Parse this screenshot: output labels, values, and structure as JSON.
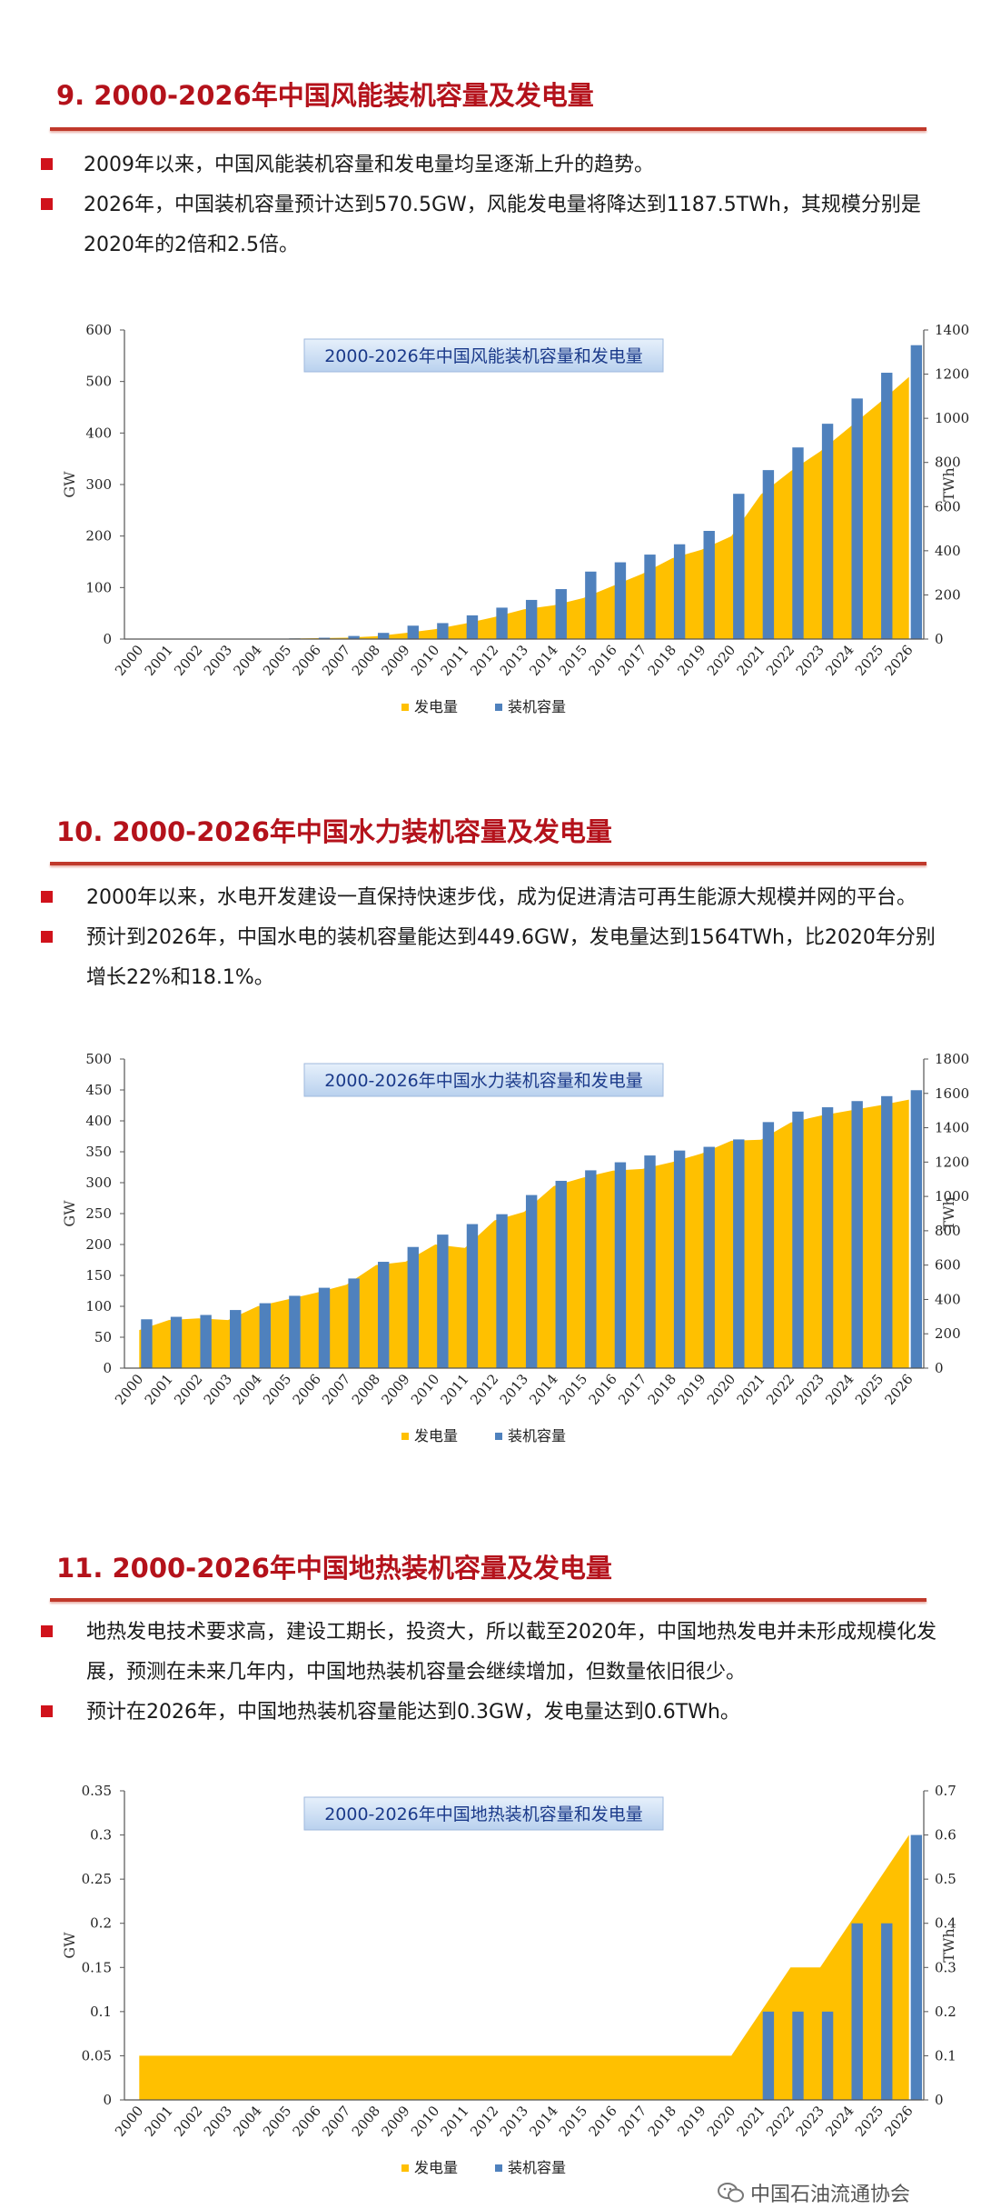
{
  "sections": [
    {
      "title": "9. 2000-2026年中国风能装机容量及发电量",
      "bullets": [
        "2009年以来，中国风能装机容量和发电量均呈逐渐上升的趋势。",
        "2026年，中国装机容量预计达到570.5GW，风能发电量将降达到1187.5TWh，其规模分别是2020年的2倍和2.5倍。"
      ]
    },
    {
      "title": "10. 2000-2026年中国水力装机容量及发电量",
      "bullets": [
        "2000年以来，水电开发建设一直保持快速步伐，成为促进清洁可再生能源大规模并网的平台。",
        "预计到2026年，中国水电的装机容量能达到449.6GW，发电量达到1564TWh，比2020年分别增长22%和18.1%。"
      ]
    },
    {
      "title": "11. 2000-2026年中国地热装机容量及发电量",
      "bullets": [
        "地热发电技术要求高，建设工期长，投资大，所以截至2020年，中国地热发电并未形成规模化发展，预测在未来几年内，中国地热装机容量会继续增加，但数量依旧很少。",
        "预计在2026年，中国地热装机容量能达到0.3GW，发电量达到0.6TWh。"
      ]
    }
  ],
  "colors": {
    "accent": "#b4121b",
    "bar": "#4f81bd",
    "area": "#ffc000",
    "title_bg": "#cfe0f3"
  },
  "chart_data": [
    {
      "type": "bar",
      "title": "2000-2026年中国风能装机容量和发电量",
      "categories": [
        "2000",
        "2001",
        "2002",
        "2003",
        "2004",
        "2005",
        "2006",
        "2007",
        "2008",
        "2009",
        "2010",
        "2011",
        "2012",
        "2013",
        "2014",
        "2015",
        "2016",
        "2017",
        "2018",
        "2019",
        "2020",
        "2021",
        "2022",
        "2023",
        "2024",
        "2025",
        "2026"
      ],
      "series": [
        {
          "name": "发电量",
          "kind": "area",
          "axis": "right",
          "values": [
            0,
            0,
            0,
            0,
            1,
            2,
            4,
            6,
            13,
            28,
            45,
            70,
            100,
            135,
            153,
            186,
            241,
            296,
            366,
            405,
            466,
            655,
            760,
            850,
            960,
            1070,
            1187.5
          ]
        },
        {
          "name": "装机容量",
          "kind": "bar",
          "axis": "left",
          "values": [
            0.3,
            0.4,
            0.5,
            0.6,
            0.8,
            1.3,
            2.6,
            6,
            12,
            26,
            31,
            46,
            61,
            76,
            97,
            131,
            149,
            164,
            184,
            210,
            282,
            328,
            372,
            418,
            467,
            517,
            570.5
          ]
        }
      ],
      "ylabel": "GW",
      "ylim": [
        0,
        600
      ],
      "yticks": [
        0,
        100,
        200,
        300,
        400,
        500,
        600
      ],
      "y2label": "TWh",
      "y2lim": [
        0,
        1400
      ],
      "y2ticks": [
        0,
        200,
        400,
        600,
        800,
        1000,
        1200,
        1400
      ],
      "legend": "bottom"
    },
    {
      "type": "bar",
      "title": "2000-2026年中国水力装机容量和发电量",
      "categories": [
        "2000",
        "2001",
        "2002",
        "2003",
        "2004",
        "2005",
        "2006",
        "2007",
        "2008",
        "2009",
        "2010",
        "2011",
        "2012",
        "2013",
        "2014",
        "2015",
        "2016",
        "2017",
        "2018",
        "2019",
        "2020",
        "2021",
        "2022",
        "2023",
        "2024",
        "2025",
        "2026"
      ],
      "series": [
        {
          "name": "发电量",
          "kind": "area",
          "axis": "right",
          "values": [
            222,
            280,
            290,
            280,
            360,
            400,
            440,
            486,
            600,
            620,
            720,
            700,
            860,
            910,
            1060,
            1110,
            1150,
            1160,
            1200,
            1250,
            1324,
            1330,
            1430,
            1470,
            1500,
            1530,
            1564
          ]
        },
        {
          "name": "装机容量",
          "kind": "bar",
          "axis": "left",
          "values": [
            79,
            83,
            86,
            94,
            105,
            117,
            130,
            145,
            172,
            196,
            216,
            233,
            249,
            280,
            303,
            320,
            333,
            344,
            352,
            358,
            370,
            398,
            415,
            422,
            432,
            440,
            449.6
          ]
        }
      ],
      "ylabel": "GW",
      "ylim": [
        0,
        500
      ],
      "yticks": [
        0,
        50,
        100,
        150,
        200,
        250,
        300,
        350,
        400,
        450,
        500
      ],
      "y2label": "TWh",
      "y2lim": [
        0,
        1800
      ],
      "y2ticks": [
        0,
        200,
        400,
        600,
        800,
        1000,
        1200,
        1400,
        1600,
        1800
      ],
      "legend": "bottom"
    },
    {
      "type": "bar",
      "title": "2000-2026年中国地热装机容量和发电量",
      "categories": [
        "2000",
        "2001",
        "2002",
        "2003",
        "2004",
        "2005",
        "2006",
        "2007",
        "2008",
        "2009",
        "2010",
        "2011",
        "2012",
        "2013",
        "2014",
        "2015",
        "2016",
        "2017",
        "2018",
        "2019",
        "2020",
        "2021",
        "2022",
        "2023",
        "2024",
        "2025",
        "2026"
      ],
      "series": [
        {
          "name": "发电量",
          "kind": "area",
          "axis": "right",
          "values": [
            0.1,
            0.1,
            0.1,
            0.1,
            0.1,
            0.1,
            0.1,
            0.1,
            0.1,
            0.1,
            0.1,
            0.1,
            0.1,
            0.1,
            0.1,
            0.1,
            0.1,
            0.1,
            0.1,
            0.1,
            0.1,
            0.2,
            0.3,
            0.3,
            0.4,
            0.5,
            0.6
          ]
        },
        {
          "name": "装机容量",
          "kind": "bar",
          "axis": "left",
          "values": [
            0,
            0,
            0,
            0,
            0,
            0,
            0,
            0,
            0,
            0,
            0,
            0,
            0,
            0,
            0,
            0,
            0,
            0,
            0,
            0,
            0,
            0.1,
            0.1,
            0.1,
            0.2,
            0.2,
            0.3
          ]
        }
      ],
      "ylabel": "GW",
      "ylim": [
        0,
        0.35
      ],
      "yticks": [
        0,
        0.05,
        0.1,
        0.15,
        0.2,
        0.25,
        0.3,
        0.35
      ],
      "y2label": "TWh",
      "y2lim": [
        0,
        0.7
      ],
      "y2ticks": [
        0,
        0.1,
        0.2,
        0.3,
        0.4,
        0.5,
        0.6,
        0.7
      ],
      "legend": "bottom"
    }
  ],
  "watermark": "中国石油流通协会"
}
